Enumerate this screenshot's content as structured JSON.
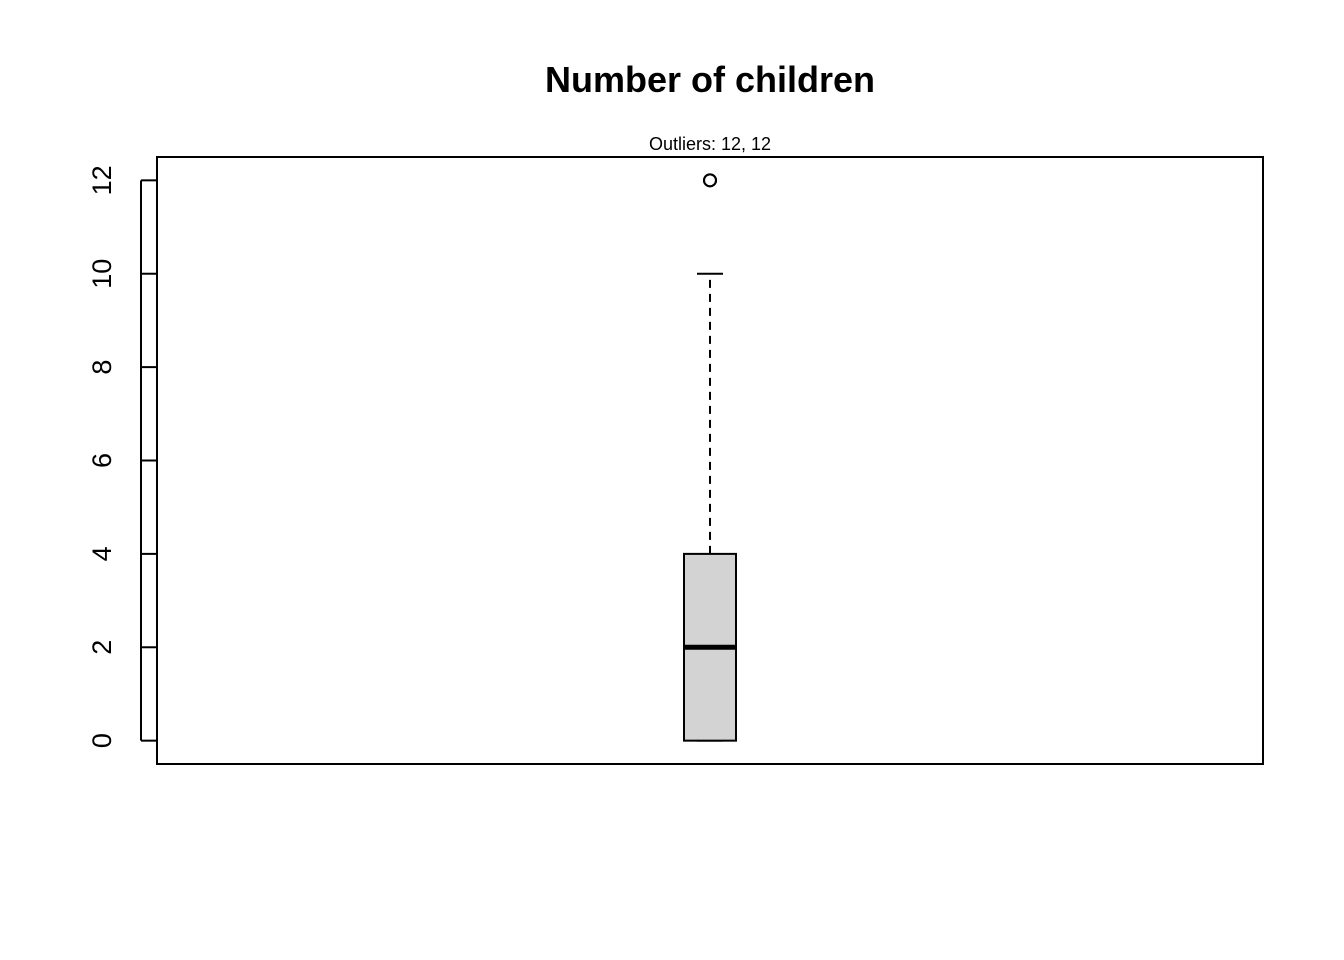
{
  "chart_data": {
    "type": "boxplot",
    "title": "Number of children",
    "subtitle": "Outliers:  12, 12",
    "xlabel": "",
    "ylabel": "",
    "ylim": [
      -0.5,
      12.5
    ],
    "y_ticks": [
      0,
      2,
      4,
      6,
      8,
      10,
      12
    ],
    "y_tick_labels": [
      "0",
      "2",
      "4",
      "6",
      "8",
      "10",
      "12"
    ],
    "grid": false,
    "box": {
      "min": 0,
      "q1": 0,
      "median": 2,
      "q3": 4,
      "whisker_low": 0,
      "whisker_high": 10,
      "outliers": [
        12,
        12
      ]
    },
    "colors": {
      "box_fill": "#d3d3d3",
      "stroke": "#000000"
    }
  }
}
